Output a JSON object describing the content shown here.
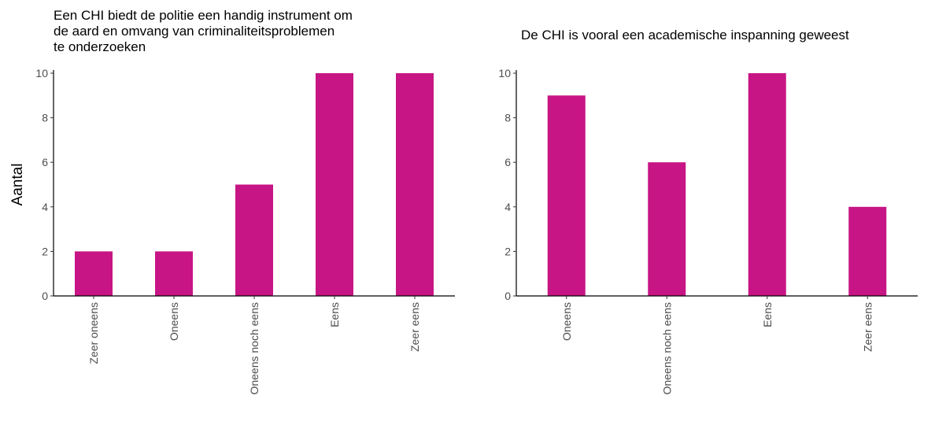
{
  "colors": {
    "bar": "#C71585",
    "axis": "#000000",
    "tick_text": "#4d4d4d"
  },
  "chart_data": [
    {
      "type": "bar",
      "title": "Een CHI biedt de politie een handig instrument om de aard en omvang van criminaliteitsproblemen te onderzoeken",
      "title_lines": [
        "Een CHI biedt de politie een handig instrument om",
        "de aard en omvang van criminaliteitsproblemen",
        "te onderzoeken"
      ],
      "xlabel": "",
      "ylabel": "Aantal",
      "categories": [
        "Zeer oneens",
        "Oneens",
        "Oneens noch eens",
        "Eens",
        "Zeer eens"
      ],
      "values": [
        2,
        2,
        5,
        10,
        10
      ],
      "ylim": [
        0,
        10
      ],
      "yticks": [
        0,
        2,
        4,
        6,
        8,
        10
      ],
      "grid": false,
      "legend": "none"
    },
    {
      "type": "bar",
      "title": "De CHI is vooral een academische inspanning geweest",
      "title_lines": [
        "De CHI is vooral een academische inspanning geweest"
      ],
      "xlabel": "",
      "ylabel": "",
      "categories": [
        "Oneens",
        "Oneens noch eens",
        "Eens",
        "Zeer eens"
      ],
      "values": [
        9,
        6,
        10,
        4
      ],
      "ylim": [
        0,
        10
      ],
      "yticks": [
        0,
        2,
        4,
        6,
        8,
        10
      ],
      "grid": false,
      "legend": "none"
    }
  ]
}
